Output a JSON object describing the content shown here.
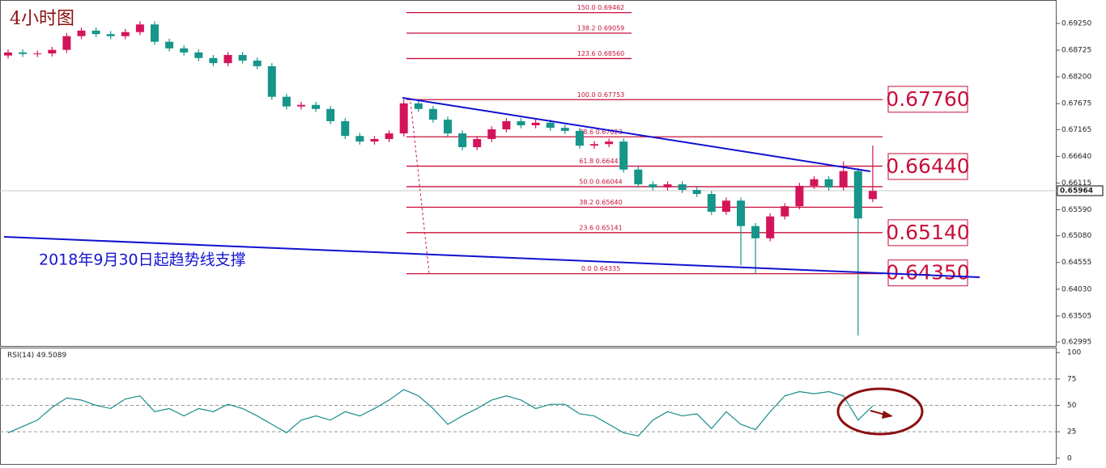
{
  "chart_data": [
    {
      "type": "candlestick",
      "title": "4小时图",
      "annotation": "2018年9月30日起趋势线支撑",
      "up_color": "#d4145a",
      "down_color": "#16958a",
      "ylim": [
        0.62916,
        0.6971
      ],
      "yticks": [
        {
          "value": 0.6925,
          "label": "0.69250"
        },
        0.68725,
        {
          "value": 0.682,
          "label": "0.68200"
        },
        0.67675,
        0.67165,
        {
          "value": 0.6664,
          "label": "0.66640"
        },
        0.66115,
        {
          "value": 0.6559,
          "label": "0.65590"
        },
        {
          "value": 0.6508,
          "label": "0.65080"
        },
        0.64555,
        {
          "value": 0.6403,
          "label": "0.64030"
        },
        0.63505,
        0.62995
      ],
      "current_price": 0.65964,
      "open": [
        0.6862,
        0.6868,
        0.6865,
        0.6866,
        0.6873,
        0.69,
        0.6911,
        0.6904,
        0.69,
        0.6908,
        0.6923,
        0.6889,
        0.6876,
        0.6868,
        0.6857,
        0.6847,
        0.6863,
        0.6852,
        0.6841,
        0.6781,
        0.6762,
        0.6765,
        0.6757,
        0.6733,
        0.6704,
        0.6693,
        0.6698,
        0.6709,
        0.6768,
        0.6757,
        0.6736,
        0.6709,
        0.6682,
        0.6698,
        0.6717,
        0.6733,
        0.6725,
        0.673,
        0.672,
        0.6714,
        0.6685,
        0.6688,
        0.6693,
        0.6638,
        0.6609,
        0.6603,
        0.6609,
        0.6598,
        0.659,
        0.6555,
        0.6577,
        0.6527,
        0.6503,
        0.6546,
        0.6566,
        0.6606,
        0.6619,
        0.6603,
        0.6635,
        0.658
      ],
      "high": [
        0.6874,
        0.6874,
        0.6872,
        0.6879,
        0.6906,
        0.6917,
        0.6917,
        0.691,
        0.6914,
        0.6929,
        0.6929,
        0.6895,
        0.6882,
        0.6874,
        0.6863,
        0.6869,
        0.6869,
        0.6858,
        0.6847,
        0.6787,
        0.6771,
        0.6771,
        0.6763,
        0.6739,
        0.671,
        0.6704,
        0.6715,
        0.6776,
        0.6774,
        0.6763,
        0.6742,
        0.6715,
        0.6704,
        0.6723,
        0.6739,
        0.6739,
        0.6736,
        0.6736,
        0.6726,
        0.672,
        0.6694,
        0.6699,
        0.6699,
        0.6644,
        0.6615,
        0.6615,
        0.6615,
        0.6604,
        0.6596,
        0.6583,
        0.6583,
        0.6533,
        0.6552,
        0.6572,
        0.6612,
        0.6625,
        0.6625,
        0.6654,
        0.6641,
        0.6685
      ],
      "low": [
        0.6856,
        0.6859,
        0.6859,
        0.686,
        0.6867,
        0.6894,
        0.6898,
        0.6894,
        0.6894,
        0.6902,
        0.6883,
        0.687,
        0.6862,
        0.6851,
        0.6841,
        0.6841,
        0.6846,
        0.6835,
        0.6775,
        0.6756,
        0.6756,
        0.6751,
        0.6727,
        0.6698,
        0.6687,
        0.6687,
        0.6692,
        0.6703,
        0.6751,
        0.673,
        0.6703,
        0.6676,
        0.6676,
        0.6692,
        0.6711,
        0.6719,
        0.6719,
        0.6714,
        0.6708,
        0.6679,
        0.6679,
        0.6682,
        0.6632,
        0.6603,
        0.6597,
        0.6597,
        0.6592,
        0.6584,
        0.6549,
        0.6549,
        0.645,
        0.6434,
        0.6497,
        0.654,
        0.656,
        0.66,
        0.6597,
        0.6597,
        0.6312,
        0.6574
      ],
      "close": [
        0.6868,
        0.6865,
        0.6866,
        0.6873,
        0.69,
        0.6911,
        0.6904,
        0.69,
        0.6908,
        0.6923,
        0.6889,
        0.6876,
        0.6868,
        0.6857,
        0.6847,
        0.6863,
        0.6852,
        0.6841,
        0.6781,
        0.6762,
        0.6765,
        0.6757,
        0.6733,
        0.6704,
        0.6693,
        0.6698,
        0.6709,
        0.6768,
        0.6757,
        0.6736,
        0.6709,
        0.6682,
        0.6698,
        0.6717,
        0.6733,
        0.6725,
        0.673,
        0.672,
        0.6714,
        0.6685,
        0.6688,
        0.6693,
        0.6638,
        0.6609,
        0.6603,
        0.6609,
        0.6598,
        0.659,
        0.6555,
        0.6577,
        0.6527,
        0.6503,
        0.6546,
        0.6566,
        0.6606,
        0.6619,
        0.6603,
        0.6635,
        0.6542,
        0.6596
      ],
      "fib_color": "#c8103a",
      "fib_levels": [
        {
          "label": "150.0 0.69462",
          "price": 0.69462
        },
        {
          "label": "138.2 0.69059",
          "price": 0.69059
        },
        {
          "label": "123.6 0.68560",
          "price": 0.6856
        },
        {
          "label": "100.0 0.67753",
          "price": 0.67753
        },
        {
          "label": "78.6 0.67023",
          "price": 0.67023
        },
        {
          "label": "61.8 0.66447",
          "price": 0.66447
        },
        {
          "label": "50.0 0.66044",
          "price": 0.66044
        },
        {
          "label": "38.2 0.65640",
          "price": 0.6564
        },
        {
          "label": "23.6 0.65141",
          "price": 0.65141
        },
        {
          "label": "0.0 0.64335",
          "price": 0.64335
        }
      ],
      "levels": [
        {
          "value": 0.6776,
          "label": "0.67760"
        },
        {
          "value": 0.6644,
          "label": "0.66440"
        },
        {
          "value": 0.6514,
          "label": "0.65140"
        },
        {
          "value": 0.6435,
          "label": "0.64350"
        }
      ]
    },
    {
      "type": "line",
      "title": "RSI(14)",
      "color": "#1a8c8c",
      "ylim": [
        -4,
        104
      ],
      "yticks": [
        100,
        75,
        50,
        25,
        0
      ],
      "levels": [
        75,
        50,
        25
      ],
      "values": [
        24,
        30,
        36,
        48,
        57,
        55,
        50,
        47,
        56,
        59,
        44,
        47,
        40,
        47,
        44,
        51,
        47,
        40,
        32,
        24,
        36,
        40,
        36,
        44,
        40,
        47,
        55,
        65,
        59,
        47,
        32,
        40,
        47,
        55,
        59,
        55,
        47,
        51,
        51,
        42,
        40,
        32,
        24,
        21,
        36,
        44,
        40,
        42,
        28,
        44,
        32,
        27,
        44,
        59,
        63,
        61,
        63,
        59,
        36,
        49.5089
      ]
    }
  ]
}
